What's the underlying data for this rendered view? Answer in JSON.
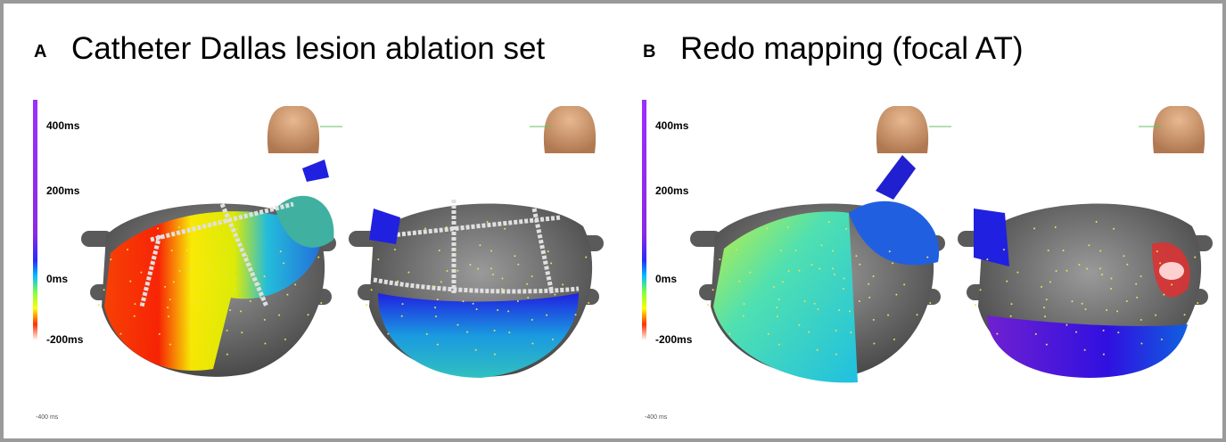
{
  "panels": [
    {
      "letter": "A",
      "title": "Catheter Dallas lesion ablation set",
      "scale_labels": [
        "400ms",
        "200ms",
        "0ms",
        "-200ms"
      ],
      "footer": "-400 ms"
    },
    {
      "letter": "B",
      "title": "Redo mapping (focal AT)",
      "scale_labels": [
        "400ms",
        "200ms",
        "0ms",
        "-200ms"
      ],
      "footer": "-400 ms"
    }
  ]
}
